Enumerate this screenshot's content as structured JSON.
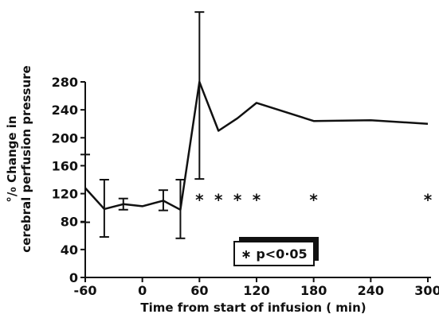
{
  "chart_data": {
    "type": "line",
    "xlabel": "Time from start of infusion ( min)",
    "ylabel_line1": "°/₀ Change in",
    "ylabel_line2": "cerebral perfusion pressure",
    "x_ticks": [
      -60,
      0,
      60,
      120,
      180,
      240,
      300
    ],
    "y_ticks": [
      0,
      40,
      80,
      120,
      160,
      200,
      240,
      280
    ],
    "x_tick_labels": [
      "-60",
      "0",
      "60",
      "120",
      "180",
      "240",
      "300"
    ],
    "y_tick_labels": [
      "0",
      "40",
      "80",
      "120",
      "160",
      "200",
      "240",
      "280"
    ],
    "xlim": [
      -60,
      300
    ],
    "ylim": [
      0,
      280
    ],
    "grid": false,
    "series": [
      {
        "x": [
          -60,
          -40,
          -20,
          0,
          22,
          40,
          60,
          80,
          100,
          120,
          180,
          240,
          300
        ],
        "y": [
          128,
          98,
          105,
          102,
          110,
          97,
          280,
          210,
          228,
          250,
          224,
          225,
          220
        ],
        "error_bars": [
          {
            "x": -60,
            "lower": 79,
            "upper": 176
          },
          {
            "x": -40,
            "lower": 58,
            "upper": 140
          },
          {
            "x": -20,
            "lower": 97,
            "upper": 113
          },
          {
            "x": 22,
            "lower": 96,
            "upper": 125
          },
          {
            "x": 40,
            "lower": 56,
            "upper": 140
          },
          {
            "x": 60,
            "lower": 141,
            "upper": 380
          }
        ]
      }
    ],
    "significance_markers": {
      "symbol": "*",
      "x": [
        60,
        80,
        100,
        120,
        180,
        300
      ],
      "y": 118
    },
    "legend": {
      "text": "∗ p<0·05",
      "placement": "below-center"
    }
  }
}
